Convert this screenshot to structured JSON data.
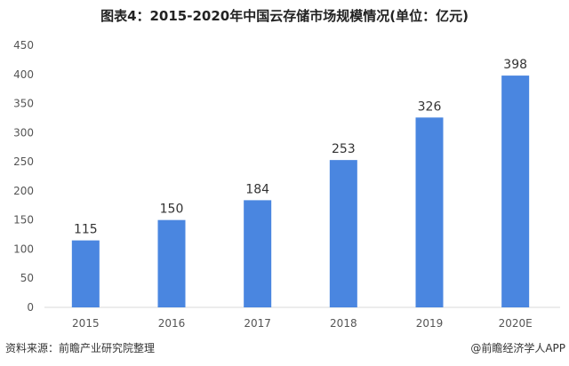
{
  "chart_data": {
    "type": "bar",
    "title": "图表4：2015-2020年中国云存储市场规模情况(单位：亿元)",
    "categories": [
      "2015",
      "2016",
      "2017",
      "2018",
      "2019",
      "2020E"
    ],
    "values": [
      115,
      150,
      184,
      253,
      326,
      398
    ],
    "ylim": [
      0,
      450
    ],
    "yticks": [
      0,
      50,
      100,
      150,
      200,
      250,
      300,
      350,
      400,
      450
    ],
    "xlabel": "",
    "ylabel": "",
    "grid": false,
    "bar_color": "#4a86e0",
    "data_labels": true
  },
  "footer": {
    "source": "资料来源：前瞻产业研究院整理",
    "credit": "@前瞻经济学人APP"
  }
}
